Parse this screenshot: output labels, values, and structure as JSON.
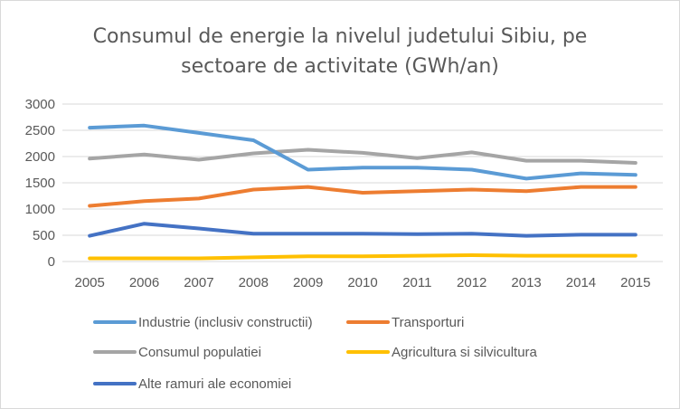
{
  "chart_data": {
    "type": "line",
    "title_lines": [
      "Consumul de energie la nivelul judetului Sibiu, pe",
      "sectoare de activitate (GWh/an)"
    ],
    "xlabel": "",
    "ylabel": "",
    "x": [
      "2005",
      "2006",
      "2007",
      "2008",
      "2009",
      "2010",
      "2011",
      "2012",
      "2013",
      "2014",
      "2015"
    ],
    "ylim": [
      0,
      3000
    ],
    "yticks": [
      "0",
      "500",
      "1000",
      "1500",
      "2000",
      "2500",
      "3000"
    ],
    "grid": "horizontal",
    "legend_position": "bottom",
    "series": [
      {
        "name": "Industrie (inclusiv constructii)",
        "color": "#5b9bd5",
        "values": [
          2550,
          2590,
          2450,
          2310,
          1750,
          1790,
          1790,
          1750,
          1580,
          1680,
          1650
        ]
      },
      {
        "name": "Transporturi",
        "color": "#ed7d31",
        "values": [
          1060,
          1150,
          1200,
          1370,
          1420,
          1310,
          1340,
          1370,
          1340,
          1420,
          1420
        ]
      },
      {
        "name": "Consumul populatiei",
        "color": "#a5a5a5",
        "values": [
          1960,
          2040,
          1940,
          2060,
          2130,
          2070,
          1970,
          2080,
          1920,
          1920,
          1880
        ]
      },
      {
        "name": "Agricultura si silvicultura",
        "color": "#ffc000",
        "values": [
          60,
          60,
          60,
          80,
          100,
          100,
          110,
          120,
          110,
          110,
          110
        ]
      },
      {
        "name": "Alte ramuri ale economiei",
        "color": "#4472c4",
        "values": [
          490,
          720,
          630,
          530,
          530,
          530,
          520,
          530,
          490,
          510,
          510
        ]
      }
    ]
  }
}
